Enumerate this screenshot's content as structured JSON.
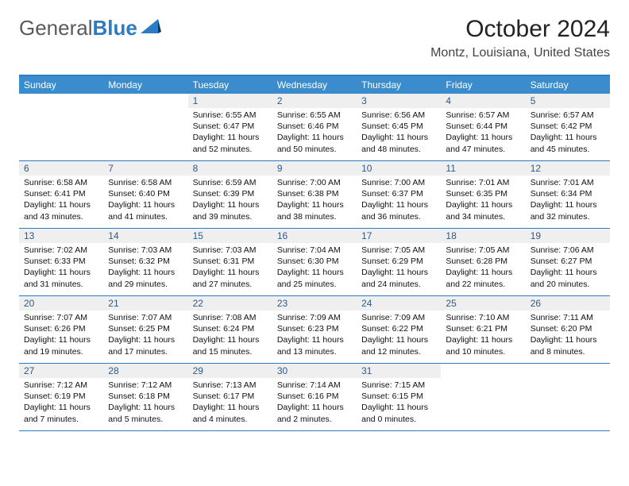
{
  "logo": {
    "text1": "General",
    "text2": "Blue"
  },
  "title": "October 2024",
  "location": "Montz, Louisiana, United States",
  "colors": {
    "header_bg": "#3b8ccc",
    "border": "#2b7cc4",
    "daynum_bg": "#efefef",
    "daynum_fg": "#2f5a88"
  },
  "day_names": [
    "Sunday",
    "Monday",
    "Tuesday",
    "Wednesday",
    "Thursday",
    "Friday",
    "Saturday"
  ],
  "weeks": [
    [
      null,
      null,
      {
        "n": "1",
        "sr": "Sunrise: 6:55 AM",
        "ss": "Sunset: 6:47 PM",
        "dl": "Daylight: 11 hours and 52 minutes."
      },
      {
        "n": "2",
        "sr": "Sunrise: 6:55 AM",
        "ss": "Sunset: 6:46 PM",
        "dl": "Daylight: 11 hours and 50 minutes."
      },
      {
        "n": "3",
        "sr": "Sunrise: 6:56 AM",
        "ss": "Sunset: 6:45 PM",
        "dl": "Daylight: 11 hours and 48 minutes."
      },
      {
        "n": "4",
        "sr": "Sunrise: 6:57 AM",
        "ss": "Sunset: 6:44 PM",
        "dl": "Daylight: 11 hours and 47 minutes."
      },
      {
        "n": "5",
        "sr": "Sunrise: 6:57 AM",
        "ss": "Sunset: 6:42 PM",
        "dl": "Daylight: 11 hours and 45 minutes."
      }
    ],
    [
      {
        "n": "6",
        "sr": "Sunrise: 6:58 AM",
        "ss": "Sunset: 6:41 PM",
        "dl": "Daylight: 11 hours and 43 minutes."
      },
      {
        "n": "7",
        "sr": "Sunrise: 6:58 AM",
        "ss": "Sunset: 6:40 PM",
        "dl": "Daylight: 11 hours and 41 minutes."
      },
      {
        "n": "8",
        "sr": "Sunrise: 6:59 AM",
        "ss": "Sunset: 6:39 PM",
        "dl": "Daylight: 11 hours and 39 minutes."
      },
      {
        "n": "9",
        "sr": "Sunrise: 7:00 AM",
        "ss": "Sunset: 6:38 PM",
        "dl": "Daylight: 11 hours and 38 minutes."
      },
      {
        "n": "10",
        "sr": "Sunrise: 7:00 AM",
        "ss": "Sunset: 6:37 PM",
        "dl": "Daylight: 11 hours and 36 minutes."
      },
      {
        "n": "11",
        "sr": "Sunrise: 7:01 AM",
        "ss": "Sunset: 6:35 PM",
        "dl": "Daylight: 11 hours and 34 minutes."
      },
      {
        "n": "12",
        "sr": "Sunrise: 7:01 AM",
        "ss": "Sunset: 6:34 PM",
        "dl": "Daylight: 11 hours and 32 minutes."
      }
    ],
    [
      {
        "n": "13",
        "sr": "Sunrise: 7:02 AM",
        "ss": "Sunset: 6:33 PM",
        "dl": "Daylight: 11 hours and 31 minutes."
      },
      {
        "n": "14",
        "sr": "Sunrise: 7:03 AM",
        "ss": "Sunset: 6:32 PM",
        "dl": "Daylight: 11 hours and 29 minutes."
      },
      {
        "n": "15",
        "sr": "Sunrise: 7:03 AM",
        "ss": "Sunset: 6:31 PM",
        "dl": "Daylight: 11 hours and 27 minutes."
      },
      {
        "n": "16",
        "sr": "Sunrise: 7:04 AM",
        "ss": "Sunset: 6:30 PM",
        "dl": "Daylight: 11 hours and 25 minutes."
      },
      {
        "n": "17",
        "sr": "Sunrise: 7:05 AM",
        "ss": "Sunset: 6:29 PM",
        "dl": "Daylight: 11 hours and 24 minutes."
      },
      {
        "n": "18",
        "sr": "Sunrise: 7:05 AM",
        "ss": "Sunset: 6:28 PM",
        "dl": "Daylight: 11 hours and 22 minutes."
      },
      {
        "n": "19",
        "sr": "Sunrise: 7:06 AM",
        "ss": "Sunset: 6:27 PM",
        "dl": "Daylight: 11 hours and 20 minutes."
      }
    ],
    [
      {
        "n": "20",
        "sr": "Sunrise: 7:07 AM",
        "ss": "Sunset: 6:26 PM",
        "dl": "Daylight: 11 hours and 19 minutes."
      },
      {
        "n": "21",
        "sr": "Sunrise: 7:07 AM",
        "ss": "Sunset: 6:25 PM",
        "dl": "Daylight: 11 hours and 17 minutes."
      },
      {
        "n": "22",
        "sr": "Sunrise: 7:08 AM",
        "ss": "Sunset: 6:24 PM",
        "dl": "Daylight: 11 hours and 15 minutes."
      },
      {
        "n": "23",
        "sr": "Sunrise: 7:09 AM",
        "ss": "Sunset: 6:23 PM",
        "dl": "Daylight: 11 hours and 13 minutes."
      },
      {
        "n": "24",
        "sr": "Sunrise: 7:09 AM",
        "ss": "Sunset: 6:22 PM",
        "dl": "Daylight: 11 hours and 12 minutes."
      },
      {
        "n": "25",
        "sr": "Sunrise: 7:10 AM",
        "ss": "Sunset: 6:21 PM",
        "dl": "Daylight: 11 hours and 10 minutes."
      },
      {
        "n": "26",
        "sr": "Sunrise: 7:11 AM",
        "ss": "Sunset: 6:20 PM",
        "dl": "Daylight: 11 hours and 8 minutes."
      }
    ],
    [
      {
        "n": "27",
        "sr": "Sunrise: 7:12 AM",
        "ss": "Sunset: 6:19 PM",
        "dl": "Daylight: 11 hours and 7 minutes."
      },
      {
        "n": "28",
        "sr": "Sunrise: 7:12 AM",
        "ss": "Sunset: 6:18 PM",
        "dl": "Daylight: 11 hours and 5 minutes."
      },
      {
        "n": "29",
        "sr": "Sunrise: 7:13 AM",
        "ss": "Sunset: 6:17 PM",
        "dl": "Daylight: 11 hours and 4 minutes."
      },
      {
        "n": "30",
        "sr": "Sunrise: 7:14 AM",
        "ss": "Sunset: 6:16 PM",
        "dl": "Daylight: 11 hours and 2 minutes."
      },
      {
        "n": "31",
        "sr": "Sunrise: 7:15 AM",
        "ss": "Sunset: 6:15 PM",
        "dl": "Daylight: 11 hours and 0 minutes."
      },
      null,
      null
    ]
  ]
}
